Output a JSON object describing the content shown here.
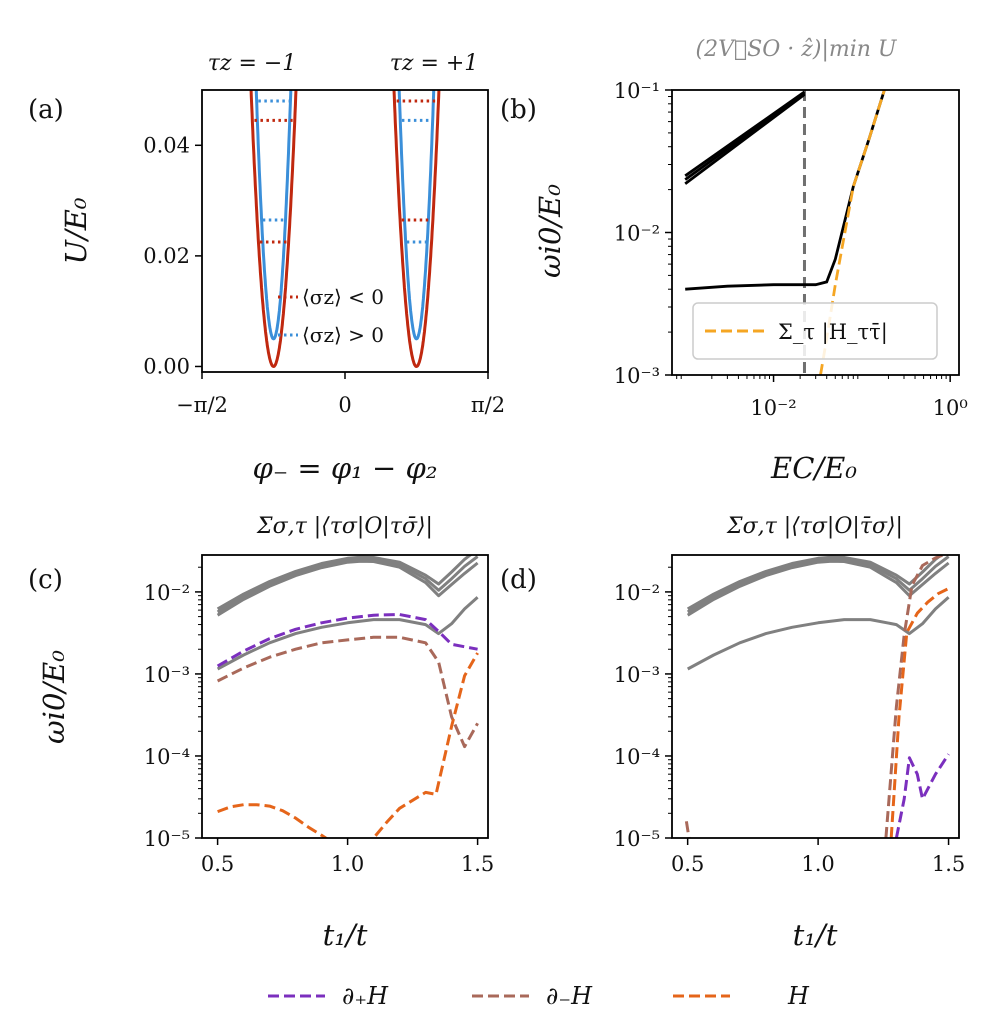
{
  "colors": {
    "red": "#c0280f",
    "blue": "#3b8fd9",
    "black": "#000000",
    "orange_b": "#f5a623",
    "gray": "#808080",
    "purple": "#7b2fbe",
    "brown": "#a9695a",
    "orange": "#e5651a",
    "vline": "#707070"
  },
  "legend": {
    "items": [
      {
        "label": "∂₊H",
        "color_key": "purple"
      },
      {
        "label": "∂₋H",
        "color_key": "brown"
      },
      {
        "label": "H",
        "color_key": "orange"
      }
    ]
  },
  "chart_data": [
    {
      "panel": "a",
      "panel_label": "(a)",
      "type": "line",
      "title_left": "τz = −1",
      "title_right": "τz = +1",
      "xlabel": "φ₋ = φ₁ − φ₂",
      "ylabel": "U/E₀",
      "xlim": [
        -1.5708,
        1.5708
      ],
      "ylim": [
        -0.001,
        0.05
      ],
      "xticks": [
        {
          "v": -1.5708,
          "label": "−π/2"
        },
        {
          "v": 0,
          "label": "0"
        },
        {
          "v": 1.5708,
          "label": "π/2"
        }
      ],
      "yticks": [
        {
          "v": 0,
          "label": "0.00"
        },
        {
          "v": 0.02,
          "label": "0.02"
        },
        {
          "v": 0.04,
          "label": "0.04"
        }
      ],
      "wells": [
        {
          "center": -0.785,
          "red_min": 0.0,
          "red_k": 0.82,
          "blue_min": 0.005,
          "blue_k": 1.25
        },
        {
          "center": 0.785,
          "red_min": 0.0,
          "red_k": 0.82,
          "blue_min": 0.005,
          "blue_k": 1.25
        }
      ],
      "levels": [
        {
          "well": 0,
          "color_key": "red",
          "y": 0.0445
        },
        {
          "well": 0,
          "color_key": "blue",
          "y": 0.048
        },
        {
          "well": 0,
          "color_key": "red",
          "y": 0.0225
        },
        {
          "well": 0,
          "color_key": "blue",
          "y": 0.0265
        },
        {
          "well": 1,
          "color_key": "red",
          "y": 0.048
        },
        {
          "well": 1,
          "color_key": "blue",
          "y": 0.0445
        },
        {
          "well": 1,
          "color_key": "red",
          "y": 0.0265
        },
        {
          "well": 1,
          "color_key": "blue",
          "y": 0.0225
        }
      ],
      "legend": [
        {
          "label": "⟨σz⟩ < 0",
          "color_key": "red"
        },
        {
          "label": "⟨σz⟩ > 0",
          "color_key": "blue"
        }
      ]
    },
    {
      "panel": "b",
      "panel_label": "(b)",
      "type": "line",
      "scale": "loglog",
      "top_label": "(2V⃗SO · ẑ)|min U",
      "xlabel": "EC/E₀",
      "ylabel": "ωi0/E₀",
      "xlim_log10": [
        -3.15,
        0.1
      ],
      "ylim_log10": [
        -3,
        -1
      ],
      "xticks": [
        {
          "v": -2,
          "label": "10⁻²"
        },
        {
          "v": 0,
          "label": "10⁰"
        }
      ],
      "yticks": [
        {
          "v": -3,
          "label": "10⁻³"
        },
        {
          "v": -2,
          "label": "10⁻²"
        },
        {
          "v": -1,
          "label": "10⁻¹"
        }
      ],
      "vline_x": 0.0224,
      "series": [
        {
          "name": "upper-1",
          "color_key": "black",
          "x": [
            0.001,
            0.0224
          ],
          "y": [
            0.025,
            0.097
          ]
        },
        {
          "name": "upper-2",
          "color_key": "black",
          "x": [
            0.001,
            0.0224
          ],
          "y": [
            0.0235,
            0.095
          ]
        },
        {
          "name": "upper-3",
          "color_key": "black",
          "x": [
            0.001,
            0.0224
          ],
          "y": [
            0.022,
            0.093
          ]
        },
        {
          "name": "lower",
          "color_key": "black",
          "x": [
            0.001,
            0.003,
            0.01,
            0.02,
            0.03,
            0.04,
            0.05,
            0.08,
            0.12,
            0.18
          ],
          "y": [
            0.004,
            0.0042,
            0.0043,
            0.0043,
            0.0043,
            0.0045,
            0.0065,
            0.021,
            0.045,
            0.1
          ]
        },
        {
          "name": "Σ_τ |H_ττ̄|",
          "color_key": "orange_b",
          "dashed": true,
          "x": [
            0.034,
            0.04,
            0.05,
            0.08,
            0.12,
            0.18
          ],
          "y": [
            0.001,
            0.0018,
            0.0043,
            0.021,
            0.045,
            0.1
          ]
        }
      ],
      "legend": [
        {
          "label": "Σ_τ |H_ττ̄|",
          "color_key": "orange_b"
        }
      ]
    },
    {
      "panel": "c",
      "panel_label": "(c)",
      "type": "line",
      "scale": "logy",
      "title": "Σσ,τ |⟨τσ|O|τσ̄⟩|",
      "xlabel": "t₁/t",
      "ylabel": "ωi0/E₀",
      "xlim": [
        0.44,
        1.54
      ],
      "ylim_log10": [
        -5,
        -1.55
      ],
      "xticks": [
        {
          "v": 0.5,
          "label": "0.5"
        },
        {
          "v": 1.0,
          "label": "1.0"
        },
        {
          "v": 1.5,
          "label": "1.5"
        }
      ],
      "yticks": [
        {
          "v": -5,
          "label": "10⁻⁵"
        },
        {
          "v": -4,
          "label": "10⁻⁴"
        },
        {
          "v": -3,
          "label": "10⁻³"
        },
        {
          "v": -2,
          "label": "10⁻²"
        }
      ],
      "series": [
        {
          "name": "gray-1",
          "color_key": "gray",
          "x": [
            0.5,
            0.6,
            0.7,
            0.8,
            0.9,
            1.0,
            1.05,
            1.1,
            1.2,
            1.3,
            1.35,
            1.4,
            1.45,
            1.5
          ],
          "y": [
            0.0062,
            0.0094,
            0.0134,
            0.0178,
            0.0222,
            0.0257,
            0.0265,
            0.0263,
            0.023,
            0.016,
            0.0125,
            0.0175,
            0.025,
            0.033
          ]
        },
        {
          "name": "gray-2",
          "color_key": "gray",
          "x": [
            0.5,
            0.6,
            0.7,
            0.8,
            0.9,
            1.0,
            1.05,
            1.1,
            1.2,
            1.3,
            1.35,
            1.4,
            1.45,
            1.5
          ],
          "y": [
            0.0057,
            0.0087,
            0.0125,
            0.0168,
            0.021,
            0.0243,
            0.025,
            0.0248,
            0.0215,
            0.0145,
            0.0105,
            0.0145,
            0.0205,
            0.027
          ]
        },
        {
          "name": "gray-3",
          "color_key": "gray",
          "x": [
            0.5,
            0.6,
            0.7,
            0.8,
            0.9,
            1.0,
            1.05,
            1.1,
            1.2,
            1.3,
            1.35,
            1.4,
            1.45,
            1.5
          ],
          "y": [
            0.0052,
            0.0081,
            0.0117,
            0.0158,
            0.0198,
            0.023,
            0.0237,
            0.0235,
            0.02,
            0.013,
            0.009,
            0.0123,
            0.0168,
            0.0225
          ]
        },
        {
          "name": "gray-low",
          "color_key": "gray",
          "x": [
            0.5,
            0.6,
            0.7,
            0.8,
            0.9,
            1.0,
            1.1,
            1.2,
            1.3,
            1.35,
            1.4,
            1.45,
            1.5
          ],
          "y": [
            0.00115,
            0.0017,
            0.0024,
            0.0031,
            0.0037,
            0.0042,
            0.0046,
            0.0046,
            0.004,
            0.0031,
            0.0041,
            0.0062,
            0.0086
          ]
        },
        {
          "name": "∂₊H",
          "color_key": "purple",
          "dashed": true,
          "x": [
            0.5,
            0.6,
            0.7,
            0.8,
            0.9,
            1.0,
            1.1,
            1.2,
            1.3,
            1.35,
            1.4,
            1.5
          ],
          "y": [
            0.00125,
            0.0019,
            0.0027,
            0.0035,
            0.0042,
            0.0048,
            0.0052,
            0.0053,
            0.0046,
            0.0033,
            0.0023,
            0.002
          ]
        },
        {
          "name": "∂₋H",
          "color_key": "brown",
          "dashed": true,
          "x": [
            0.5,
            0.6,
            0.7,
            0.8,
            0.9,
            1.0,
            1.1,
            1.2,
            1.3,
            1.35,
            1.4,
            1.45,
            1.5
          ],
          "y": [
            0.00082,
            0.00118,
            0.0016,
            0.002,
            0.0024,
            0.0026,
            0.0028,
            0.0028,
            0.0024,
            0.0014,
            0.0003,
            0.00013,
            0.00025
          ]
        },
        {
          "name": "H",
          "color_key": "orange",
          "dashed": true,
          "x": [
            0.5,
            0.55,
            0.6,
            0.65,
            0.7,
            0.75,
            0.8,
            0.85,
            0.9,
            0.95,
            1.0,
            1.05,
            1.1,
            1.15,
            1.2,
            1.3,
            1.34,
            1.4,
            1.45,
            1.5
          ],
          "y": [
            2.1e-05,
            2.4e-05,
            2.55e-05,
            2.55e-05,
            2.45e-05,
            2.15e-05,
            1.75e-05,
            1.35e-05,
            1.08e-05,
            8.5e-06,
            7e-06,
            7.5e-06,
            1e-05,
            1.55e-05,
            2.3e-05,
            3.6e-05,
            3.4e-05,
            0.00023,
            0.00095,
            0.0018
          ]
        }
      ]
    },
    {
      "panel": "d",
      "panel_label": "(d)",
      "type": "line",
      "scale": "logy",
      "title": "Σσ,τ |⟨τσ|O|τ̄σ⟩|",
      "xlabel": "t₁/t",
      "xlim": [
        0.44,
        1.54
      ],
      "ylim_log10": [
        -5,
        -1.55
      ],
      "xticks": [
        {
          "v": 0.5,
          "label": "0.5"
        },
        {
          "v": 1.0,
          "label": "1.0"
        },
        {
          "v": 1.5,
          "label": "1.5"
        }
      ],
      "yticks": [
        {
          "v": -5,
          "label": "10⁻⁵"
        },
        {
          "v": -4,
          "label": "10⁻⁴"
        },
        {
          "v": -3,
          "label": "10⁻³"
        },
        {
          "v": -2,
          "label": "10⁻²"
        }
      ],
      "series": [
        {
          "name": "gray-1",
          "color_key": "gray",
          "x": [
            0.5,
            0.6,
            0.7,
            0.8,
            0.9,
            1.0,
            1.05,
            1.1,
            1.2,
            1.3,
            1.35,
            1.4,
            1.45,
            1.5
          ],
          "y": [
            0.0062,
            0.0094,
            0.0134,
            0.0178,
            0.0222,
            0.0257,
            0.0265,
            0.0263,
            0.023,
            0.016,
            0.0125,
            0.0175,
            0.025,
            0.033
          ]
        },
        {
          "name": "gray-2",
          "color_key": "gray",
          "x": [
            0.5,
            0.6,
            0.7,
            0.8,
            0.9,
            1.0,
            1.05,
            1.1,
            1.2,
            1.3,
            1.35,
            1.4,
            1.45,
            1.5
          ],
          "y": [
            0.0057,
            0.0087,
            0.0125,
            0.0168,
            0.021,
            0.0243,
            0.025,
            0.0248,
            0.0215,
            0.0145,
            0.0105,
            0.0145,
            0.0205,
            0.027
          ]
        },
        {
          "name": "gray-3",
          "color_key": "gray",
          "x": [
            0.5,
            0.6,
            0.7,
            0.8,
            0.9,
            1.0,
            1.05,
            1.1,
            1.2,
            1.3,
            1.35,
            1.4,
            1.45,
            1.5
          ],
          "y": [
            0.0052,
            0.0081,
            0.0117,
            0.0158,
            0.0198,
            0.023,
            0.0237,
            0.0235,
            0.02,
            0.013,
            0.009,
            0.0123,
            0.0168,
            0.0225
          ]
        },
        {
          "name": "gray-low",
          "color_key": "gray",
          "x": [
            0.5,
            0.6,
            0.7,
            0.8,
            0.9,
            1.0,
            1.1,
            1.2,
            1.3,
            1.35,
            1.4,
            1.45,
            1.5
          ],
          "y": [
            0.00115,
            0.0017,
            0.0024,
            0.0031,
            0.0037,
            0.0042,
            0.0046,
            0.0046,
            0.004,
            0.0031,
            0.0041,
            0.0062,
            0.0086
          ]
        },
        {
          "name": "∂₊H",
          "color_key": "purple",
          "dashed": true,
          "x": [
            1.3,
            1.33,
            1.35,
            1.38,
            1.4,
            1.45,
            1.5
          ],
          "y": [
            1e-05,
            3e-05,
            9.5e-05,
            6e-05,
            3e-05,
            6e-05,
            0.000105
          ]
        },
        {
          "name": "∂₋H",
          "color_key": "brown",
          "dashed": true,
          "x": [
            1.26,
            1.3,
            1.33,
            1.36,
            1.4,
            1.45,
            1.5
          ],
          "y": [
            1e-05,
            0.0004,
            0.003,
            0.012,
            0.021,
            0.026,
            0.03
          ]
        },
        {
          "name": "∂₋H (left)",
          "color_key": "brown",
          "dashed": true,
          "x": [
            0.495,
            0.505
          ],
          "y": [
            1.6e-05,
            1e-05
          ]
        },
        {
          "name": "H",
          "color_key": "orange",
          "dashed": true,
          "x": [
            1.28,
            1.31,
            1.34,
            1.38,
            1.42,
            1.46,
            1.5
          ],
          "y": [
            1e-05,
            0.0003,
            0.0032,
            0.0055,
            0.0075,
            0.0095,
            0.011
          ]
        }
      ]
    }
  ]
}
